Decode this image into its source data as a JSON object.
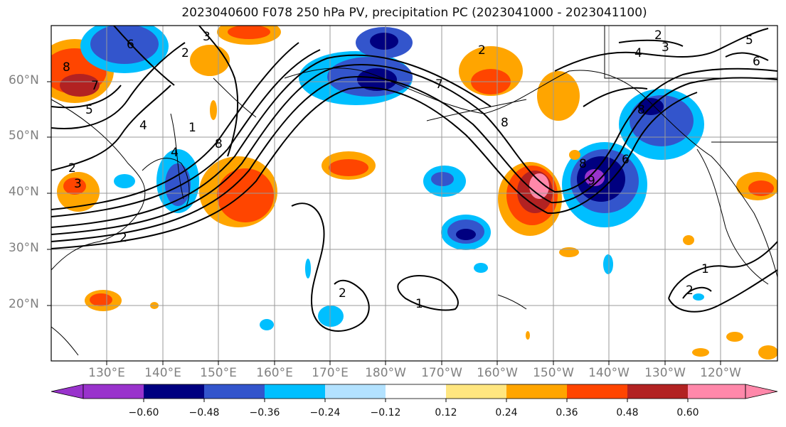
{
  "title": "2023040600 F078 250 hPa PV, precipitation PC (2023041000 - 2023041100)",
  "lat_labels": [
    "60°N",
    "50°N",
    "40°N",
    "30°N",
    "20°N"
  ],
  "lon_labels": [
    "130°E",
    "140°E",
    "150°E",
    "160°E",
    "170°E",
    "180°W",
    "170°W",
    "160°W",
    "150°W",
    "140°W",
    "130°W",
    "120°W"
  ],
  "colorbar": {
    "ticks": [
      "−0.60",
      "−0.48",
      "−0.36",
      "−0.24",
      "−0.12",
      "0.12",
      "0.24",
      "0.36",
      "0.48",
      "0.60"
    ],
    "colors": [
      "#9933cc",
      "#000080",
      "#3355cc",
      "#00bfff",
      "#b3e2ff",
      "#ffffff",
      "#ffe680",
      "#ffa500",
      "#ff4500",
      "#b22222",
      "#ff88aa"
    ]
  },
  "contour_labels": [
    "6",
    "2",
    "3",
    "4",
    "7",
    "8",
    "8",
    "2",
    "5",
    "4",
    "1",
    "3",
    "2",
    "8",
    "7",
    "2",
    "2",
    "1",
    "8",
    "3",
    "4",
    "2",
    "6",
    "8",
    "1",
    "2",
    "9",
    "5",
    "6"
  ]
}
